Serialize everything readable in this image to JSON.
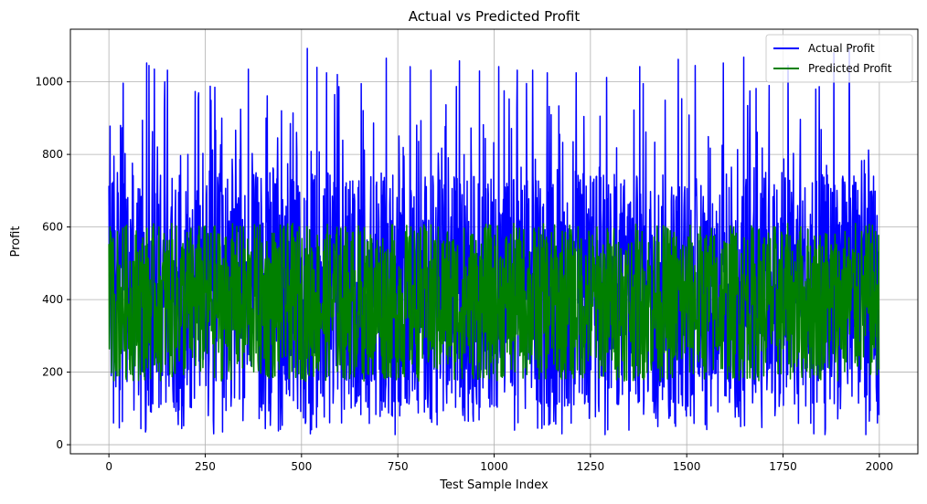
{
  "chart_data": {
    "type": "line",
    "title": "Actual vs Predicted Profit",
    "xlabel": "Test Sample Index",
    "ylabel": "Profit",
    "xlim": [
      -100,
      2100
    ],
    "ylim": [
      -25,
      1145
    ],
    "xticks": [
      0,
      250,
      500,
      750,
      1000,
      1250,
      1500,
      1750,
      2000
    ],
    "xtick_labels": [
      "0",
      "250",
      "500",
      "750",
      "1000",
      "1250",
      "1500",
      "1750",
      "2000"
    ],
    "yticks": [
      0,
      200,
      400,
      600,
      800,
      1000
    ],
    "ytick_labels": [
      "0",
      "200",
      "400",
      "600",
      "800",
      "1000"
    ],
    "grid": true,
    "legend_position": "top-right",
    "n_points": 2000,
    "x_start": 0,
    "series": [
      {
        "name": "Actual Profit",
        "color": "#0000ff",
        "summary": {
          "min": 28,
          "max": 1092,
          "typical_low": 100,
          "typical_high": 750
        },
        "peaks": [
          {
            "x": 3,
            "y": 878
          },
          {
            "x": 8,
            "y": 720
          },
          {
            "x": 22,
            "y": 750
          },
          {
            "x": 30,
            "y": 880
          },
          {
            "x": 98,
            "y": 1052
          },
          {
            "x": 104,
            "y": 1045
          },
          {
            "x": 118,
            "y": 1035
          },
          {
            "x": 145,
            "y": 1000
          },
          {
            "x": 152,
            "y": 1032
          },
          {
            "x": 205,
            "y": 800
          },
          {
            "x": 275,
            "y": 985
          },
          {
            "x": 362,
            "y": 1035
          },
          {
            "x": 408,
            "y": 900
          },
          {
            "x": 448,
            "y": 920
          },
          {
            "x": 515,
            "y": 1092
          },
          {
            "x": 540,
            "y": 1040
          },
          {
            "x": 565,
            "y": 1025
          },
          {
            "x": 593,
            "y": 1020
          },
          {
            "x": 655,
            "y": 995
          },
          {
            "x": 720,
            "y": 1065
          },
          {
            "x": 782,
            "y": 1042
          },
          {
            "x": 836,
            "y": 1032
          },
          {
            "x": 910,
            "y": 1058
          },
          {
            "x": 962,
            "y": 1030
          },
          {
            "x": 1012,
            "y": 1042
          },
          {
            "x": 1060,
            "y": 1032
          },
          {
            "x": 1100,
            "y": 1032
          },
          {
            "x": 1138,
            "y": 1025
          },
          {
            "x": 1213,
            "y": 1025
          },
          {
            "x": 1292,
            "y": 1012
          },
          {
            "x": 1378,
            "y": 1042
          },
          {
            "x": 1478,
            "y": 1062
          },
          {
            "x": 1522,
            "y": 1045
          },
          {
            "x": 1595,
            "y": 1052
          },
          {
            "x": 1648,
            "y": 1068
          },
          {
            "x": 1714,
            "y": 990
          },
          {
            "x": 1763,
            "y": 1045
          },
          {
            "x": 1882,
            "y": 1080
          },
          {
            "x": 1922,
            "y": 1090
          },
          {
            "x": 1985,
            "y": 740
          }
        ],
        "troughs": [
          {
            "x": 12,
            "y": 60
          },
          {
            "x": 95,
            "y": 35
          },
          {
            "x": 272,
            "y": 30
          },
          {
            "x": 295,
            "y": 35
          },
          {
            "x": 440,
            "y": 38
          },
          {
            "x": 523,
            "y": 30
          },
          {
            "x": 743,
            "y": 28
          },
          {
            "x": 852,
            "y": 55
          },
          {
            "x": 1053,
            "y": 40
          },
          {
            "x": 1176,
            "y": 30
          },
          {
            "x": 1288,
            "y": 28
          },
          {
            "x": 1350,
            "y": 40
          },
          {
            "x": 1640,
            "y": 50
          },
          {
            "x": 1830,
            "y": 30
          },
          {
            "x": 1859,
            "y": 28
          },
          {
            "x": 1965,
            "y": 28
          },
          {
            "x": 1995,
            "y": 60
          }
        ]
      },
      {
        "name": "Predicted Profit",
        "color": "#008000",
        "summary": {
          "min": 115,
          "max": 645,
          "typical_low": 175,
          "typical_high": 610
        }
      }
    ]
  }
}
